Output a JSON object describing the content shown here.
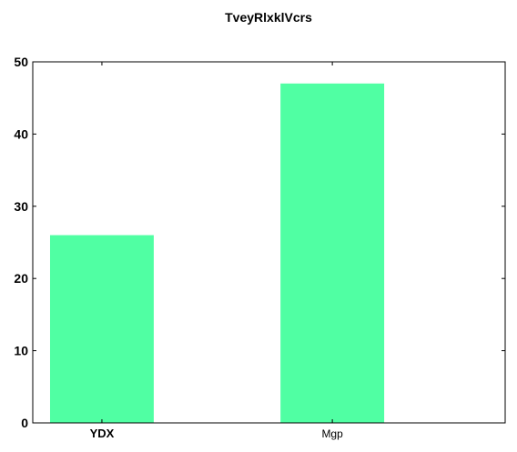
{
  "chart_data": {
    "type": "bar",
    "title": "TveyRlxklVcrs",
    "xlabel": "",
    "ylabel": "",
    "categories": [
      "YDX",
      "Mgp"
    ],
    "values": [
      26,
      47
    ],
    "ylim": [
      0,
      50
    ],
    "yticks": [
      0,
      10,
      20,
      30,
      40,
      50
    ],
    "bar_color": "#50ffa3",
    "grid": false,
    "legend": "none"
  }
}
